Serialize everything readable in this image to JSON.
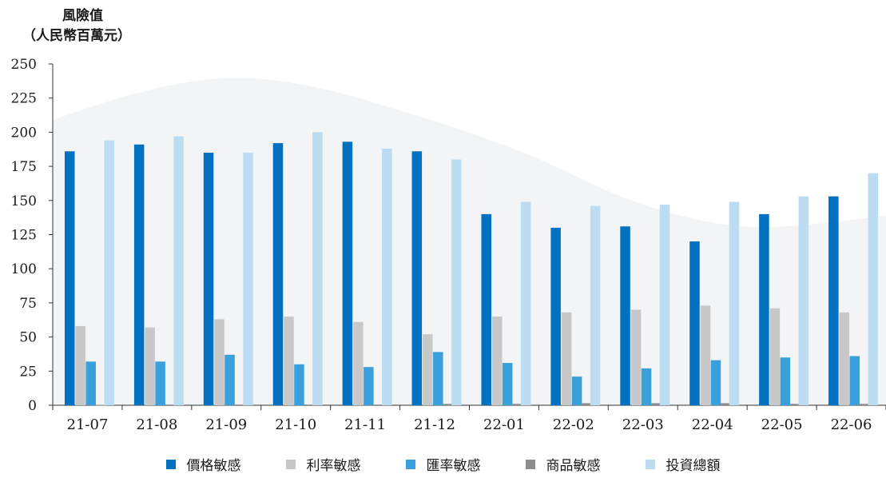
{
  "chart_data": {
    "type": "bar",
    "ylabel_lines": [
      "風險值",
      "（人民幣百萬元）"
    ],
    "ylim": [
      0,
      250
    ],
    "yticks": [
      "0",
      "25",
      "50",
      "75",
      "100",
      "125",
      "150",
      "175",
      "200",
      "225",
      "250"
    ],
    "categories": [
      "21-07",
      "21-08",
      "21-09",
      "21-10",
      "21-11",
      "21-12",
      "22-01",
      "22-02",
      "22-03",
      "22-04",
      "22-05",
      "22-06"
    ],
    "series": [
      {
        "name": "價格敏感",
        "color": "#0070c0",
        "values": [
          186,
          191,
          185,
          192,
          193,
          186,
          140,
          130,
          131,
          120,
          140,
          153
        ]
      },
      {
        "name": "利率敏感",
        "color": "#c8c8c8",
        "values": [
          58,
          57,
          63,
          65,
          61,
          52,
          65,
          68,
          70,
          73,
          71,
          68
        ]
      },
      {
        "name": "匯率敏感",
        "color": "#3aa0dc",
        "values": [
          32,
          32,
          37,
          30,
          28,
          39,
          31,
          21,
          27,
          33,
          35,
          36
        ]
      },
      {
        "name": "商品敏感",
        "color": "#8c8c8c",
        "values": [
          0.3,
          0.5,
          0.5,
          0.5,
          0.5,
          1,
          1,
          1.5,
          1.5,
          1.5,
          1,
          1
        ]
      },
      {
        "name": "投資總額",
        "color": "#bcdcf2",
        "values": [
          194,
          197,
          185,
          200,
          188,
          180,
          149,
          146,
          147,
          149,
          153,
          170
        ]
      }
    ],
    "grid": false,
    "legend_position": "bottom"
  }
}
